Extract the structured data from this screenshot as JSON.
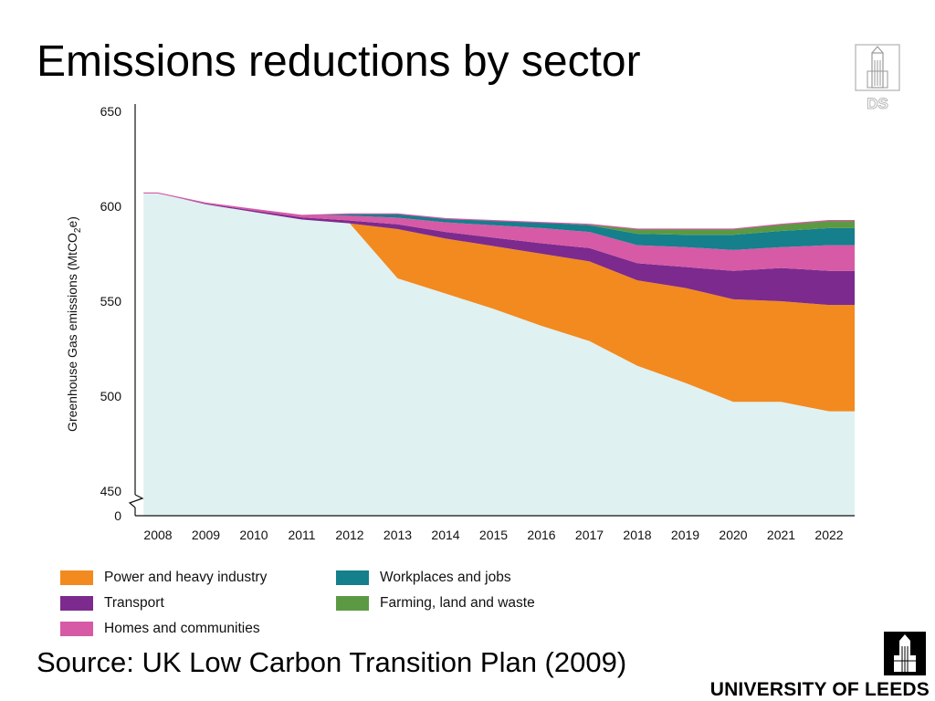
{
  "slide": {
    "title": "Emissions reductions by sector",
    "source": "Source: UK Low Carbon Transition Plan (2009)"
  },
  "logos": {
    "ds": {
      "text": "DS",
      "icon": "building-tower-icon"
    },
    "leeds": {
      "text": "UNIVERSITY OF LEEDS",
      "icon": "building-tower-icon"
    }
  },
  "chart_data": {
    "type": "area",
    "stacked": true,
    "title": "",
    "xlabel": "",
    "ylabel": "Greenhouse Gas emissions (MtCO",
    "ylabel_subscript": "2",
    "ylabel_suffix": "e)",
    "x": [
      2008,
      2009,
      2010,
      2011,
      2012,
      2013,
      2014,
      2015,
      2016,
      2017,
      2018,
      2019,
      2020,
      2021,
      2022
    ],
    "x_ticks": [
      "2008",
      "2009",
      "2010",
      "2011",
      "2012",
      "2013",
      "2014",
      "2015",
      "2016",
      "2017",
      "2018",
      "2019",
      "2020",
      "2021",
      "2022"
    ],
    "y_ticks": [
      "650",
      "600",
      "550",
      "500",
      "450",
      "0"
    ],
    "y_tick_values": [
      650,
      600,
      550,
      500,
      450,
      0
    ],
    "ylim": [
      450,
      650
    ],
    "axis_break": true,
    "grid": false,
    "legend_position": "bottom",
    "baseline": {
      "name": "",
      "color": "#dff1f1",
      "x_start": 2007.7,
      "values": [
        607,
        601,
        597,
        593,
        591,
        562,
        554,
        546,
        537,
        529,
        516,
        507,
        497,
        497,
        492
      ],
      "start_value": 607
    },
    "series": [
      {
        "name": "Power and heavy industry",
        "color": "#f28a20",
        "values": [
          0,
          0,
          0,
          0,
          0,
          26,
          29,
          33,
          38,
          42,
          45,
          50,
          54,
          53,
          56
        ]
      },
      {
        "name": "Transport",
        "color": "#7c2a8e",
        "values": [
          0,
          0.4,
          0.8,
          1.2,
          1.5,
          2.5,
          3.5,
          4.5,
          5.5,
          7.0,
          9.0,
          11.0,
          15.0,
          17.5,
          18.0
        ]
      },
      {
        "name": "Homes and communities",
        "color": "#d65aa6",
        "values": [
          0,
          0.3,
          0.6,
          1.0,
          2.5,
          3.5,
          5.0,
          6.5,
          8.0,
          8.5,
          9.5,
          10.5,
          11.0,
          11.0,
          13.5
        ]
      },
      {
        "name": "Workplaces and jobs",
        "color": "#157f8c",
        "values": [
          0,
          0,
          0,
          0,
          1.0,
          2.0,
          2.0,
          2.5,
          3.0,
          3.5,
          6.0,
          6.5,
          8.0,
          8.5,
          9.0
        ]
      },
      {
        "name": "Farming, land and waste",
        "color": "#5b9a42",
        "values": [
          0,
          0,
          0,
          0,
          0,
          0,
          0,
          0,
          0,
          0.5,
          2.5,
          3.0,
          3.0,
          3.5,
          4.0
        ]
      }
    ]
  }
}
